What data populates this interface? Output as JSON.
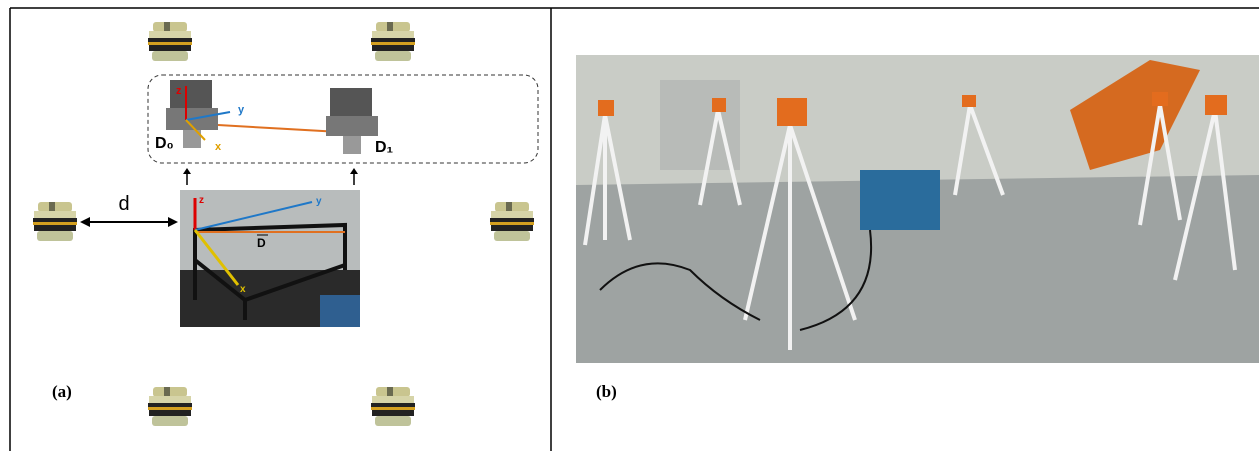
{
  "panel_a": {
    "label": "(a)",
    "distance_label": "d",
    "inset": {
      "start_label": "D₀",
      "end_label": "D₁",
      "axis_z": "z",
      "axis_y": "y",
      "axis_x": "x"
    },
    "frame_photo": {
      "axis_z": "z",
      "axis_y": "y",
      "axis_x": "x",
      "vector_label": "D"
    }
  },
  "panel_b": {
    "label": "(b)"
  }
}
